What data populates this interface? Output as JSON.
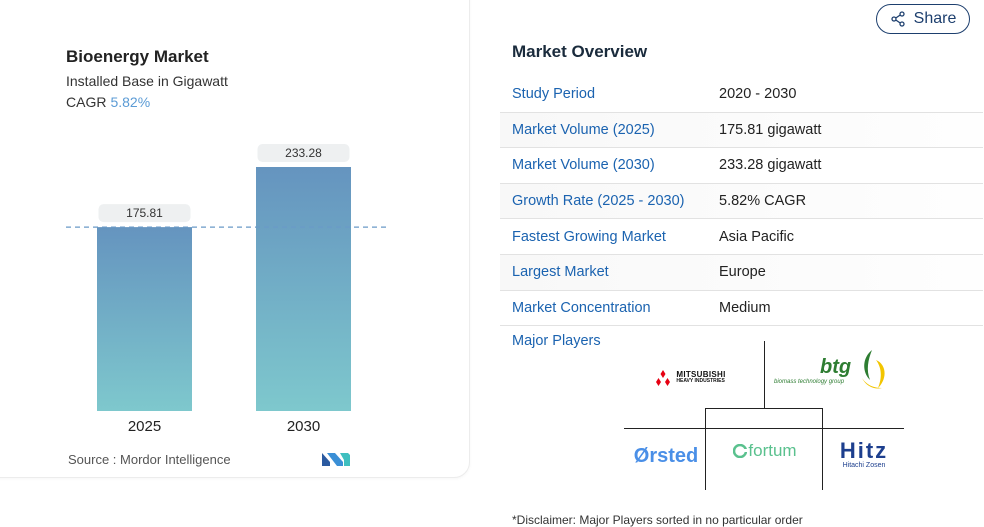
{
  "chart": {
    "title": "Bioenergy Market",
    "subtitle": "Installed Base in Gigawatt",
    "cagr_label": "CAGR",
    "cagr_value": "5.82%",
    "source_label": "Source :",
    "source_name": "Mordor Intelligence"
  },
  "chart_data": {
    "type": "bar",
    "categories": [
      "2025",
      "2030"
    ],
    "values": [
      175.81,
      233.28
    ],
    "data_labels": [
      "175.81",
      "233.28"
    ],
    "title": "Bioenergy Market",
    "subtitle": "Installed Base in Gigawatt",
    "xlabel": "",
    "ylabel": "",
    "ylim": [
      0,
      233.28
    ],
    "grid": false,
    "reference_line": 175.81,
    "colors": {
      "bar_top": "#6594bf",
      "bar_bottom": "#7ec8cd",
      "label_bg": "#eef0f1",
      "ref_line": "#6a9ac7"
    }
  },
  "share": {
    "label": "Share",
    "icon": "share-icon"
  },
  "overview": {
    "title": "Market Overview",
    "rows": [
      {
        "key": "Study Period",
        "value": "2020 - 2030"
      },
      {
        "key": "Market Volume (2025)",
        "value": "175.81 gigawatt"
      },
      {
        "key": "Market Volume (2030)",
        "value": "233.28 gigawatt"
      },
      {
        "key": "Growth Rate (2025 - 2030)",
        "value": "5.82% CAGR"
      },
      {
        "key": "Fastest Growing Market",
        "value": "Asia Pacific"
      },
      {
        "key": "Largest Market",
        "value": "Europe"
      },
      {
        "key": "Market Concentration",
        "value": "Medium"
      }
    ]
  },
  "players": {
    "label": "Major Players",
    "logos": [
      {
        "name": "MITSUBISHI HEAVY INDUSTRIES",
        "line1": "MITSUBISHI",
        "line2": "HEAVY INDUSTRIES"
      },
      {
        "name": "btg",
        "tagline": "biomass technology group"
      },
      {
        "name": "Ørsted"
      },
      {
        "name": "fortum"
      },
      {
        "name": "Hitz",
        "tagline": "Hitachi Zosen"
      }
    ],
    "disclaimer": "*Disclaimer: Major Players sorted in no particular order"
  },
  "colors": {
    "accent": "#1b63b0",
    "title": "#1a2b3c",
    "cagr": "#5b9bd5"
  }
}
